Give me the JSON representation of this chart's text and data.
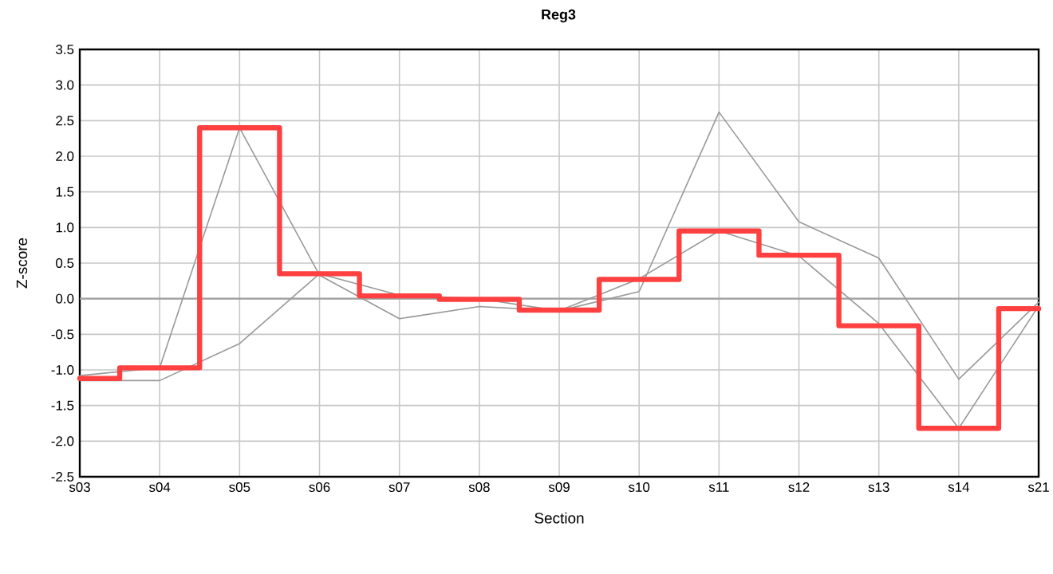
{
  "chart_data": {
    "type": "line",
    "title": "Reg3",
    "xlabel": "Section",
    "ylabel": "Z-score",
    "categories": [
      "s03",
      "s04",
      "s05",
      "s06",
      "s07",
      "s08",
      "s09",
      "s10",
      "s11",
      "s12",
      "s13",
      "s14",
      "s21"
    ],
    "series": [
      {
        "color": "#999999",
        "values": [
          -1.08,
          -0.97,
          2.4,
          0.33,
          -0.28,
          -0.11,
          -0.17,
          0.1,
          2.62,
          1.08,
          0.57,
          -1.13,
          -0.05
        ]
      },
      {
        "color": "#999999",
        "values": [
          -1.15,
          -1.15,
          -0.63,
          0.35,
          0.05,
          0.0,
          -0.17,
          0.28,
          0.95,
          0.6,
          -0.35,
          -1.82,
          -0.1
        ]
      },
      {
        "type": "step",
        "color": "#ff4040",
        "values": [
          -1.12,
          -0.97,
          2.4,
          0.35,
          0.04,
          -0.01,
          -0.16,
          0.27,
          0.95,
          0.61,
          -0.38,
          -1.82,
          -0.14
        ]
      }
    ],
    "ylim": [
      -2.5,
      3.5
    ],
    "yticks": [
      -2.5,
      {
        "value": -2,
        "label": "-2.0"
      },
      -1.5,
      {
        "value": -1,
        "label": "-1.0"
      },
      -0.5,
      {
        "value": 0,
        "label": "0.0"
      },
      0.5,
      {
        "value": 1,
        "label": "1.0"
      },
      1.5,
      {
        "value": 2,
        "label": "2.0"
      },
      2.5,
      {
        "value": 3,
        "label": "3.0"
      },
      3.5
    ],
    "grid": true,
    "marker": "none",
    "line_style": "solid",
    "ref_lines": [
      {
        "axis": "y",
        "value": 0,
        "color": "#a0a0a0"
      }
    ]
  }
}
